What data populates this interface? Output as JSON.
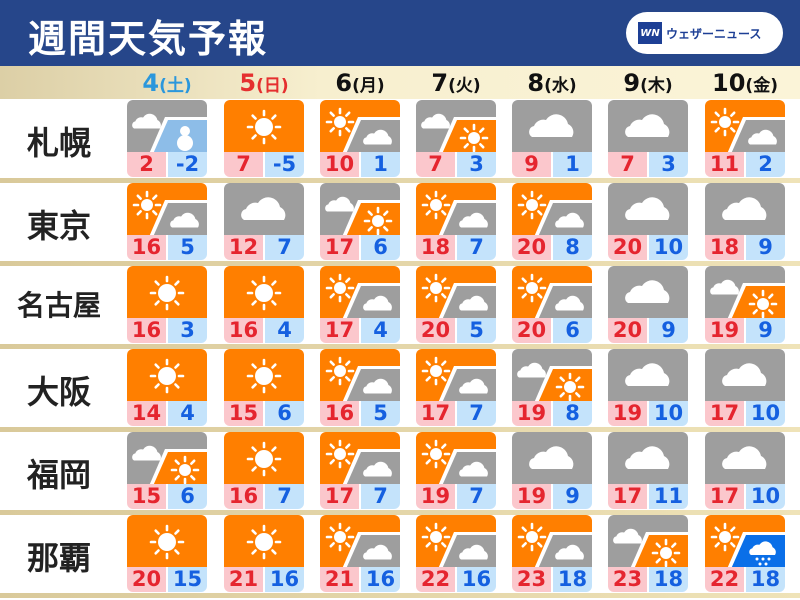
{
  "header": {
    "title": "週間天気予報",
    "logo_mark": "WN",
    "logo_text": "ウェザーニュース"
  },
  "colors": {
    "sunny": "#ff7f00",
    "cloudy": "#9e9e9e",
    "snow": "#8dbde8",
    "rain": "#0a6fe8",
    "saturday": "#2b97dc",
    "sunday": "#e52f2f"
  },
  "dates": [
    {
      "day": "4",
      "dow": "(土)",
      "color": "#2b97dc"
    },
    {
      "day": "5",
      "dow": "(日)",
      "color": "#e52f2f"
    },
    {
      "day": "6",
      "dow": "(月)",
      "color": "#111111"
    },
    {
      "day": "7",
      "dow": "(火)",
      "color": "#111111"
    },
    {
      "day": "8",
      "dow": "(水)",
      "color": "#111111"
    },
    {
      "day": "9",
      "dow": "(木)",
      "color": "#111111"
    },
    {
      "day": "10",
      "dow": "(金)",
      "color": "#111111"
    }
  ],
  "cities": [
    {
      "name": "札幌",
      "days": [
        {
          "main": "cloudy",
          "sub": "snow",
          "hi": "2",
          "lo": "-2"
        },
        {
          "main": "sunny",
          "sub": null,
          "hi": "7",
          "lo": "-5"
        },
        {
          "main": "sunny",
          "sub": "cloudy",
          "hi": "10",
          "lo": "1"
        },
        {
          "main": "cloudy",
          "sub": "sunny",
          "hi": "7",
          "lo": "3"
        },
        {
          "main": "cloudy",
          "sub": null,
          "hi": "9",
          "lo": "1"
        },
        {
          "main": "cloudy",
          "sub": null,
          "hi": "7",
          "lo": "3"
        },
        {
          "main": "sunny",
          "sub": "cloudy",
          "hi": "11",
          "lo": "2"
        }
      ]
    },
    {
      "name": "東京",
      "days": [
        {
          "main": "sunny",
          "sub": "cloudy",
          "hi": "16",
          "lo": "5"
        },
        {
          "main": "cloudy",
          "sub": null,
          "hi": "12",
          "lo": "7"
        },
        {
          "main": "cloudy",
          "sub": "sunny",
          "hi": "17",
          "lo": "6"
        },
        {
          "main": "sunny",
          "sub": "cloudy",
          "hi": "18",
          "lo": "7"
        },
        {
          "main": "sunny",
          "sub": "cloudy",
          "hi": "20",
          "lo": "8"
        },
        {
          "main": "cloudy",
          "sub": null,
          "hi": "20",
          "lo": "10"
        },
        {
          "main": "cloudy",
          "sub": null,
          "hi": "18",
          "lo": "9"
        }
      ]
    },
    {
      "name": "名古屋",
      "days": [
        {
          "main": "sunny",
          "sub": null,
          "hi": "16",
          "lo": "3"
        },
        {
          "main": "sunny",
          "sub": null,
          "hi": "16",
          "lo": "4"
        },
        {
          "main": "sunny",
          "sub": "cloudy",
          "hi": "17",
          "lo": "4"
        },
        {
          "main": "sunny",
          "sub": "cloudy",
          "hi": "20",
          "lo": "5"
        },
        {
          "main": "sunny",
          "sub": "cloudy",
          "hi": "20",
          "lo": "6"
        },
        {
          "main": "cloudy",
          "sub": null,
          "hi": "20",
          "lo": "9"
        },
        {
          "main": "cloudy",
          "sub": "sunny",
          "hi": "19",
          "lo": "9"
        }
      ]
    },
    {
      "name": "大阪",
      "days": [
        {
          "main": "sunny",
          "sub": null,
          "hi": "14",
          "lo": "4"
        },
        {
          "main": "sunny",
          "sub": null,
          "hi": "15",
          "lo": "6"
        },
        {
          "main": "sunny",
          "sub": "cloudy",
          "hi": "16",
          "lo": "5"
        },
        {
          "main": "sunny",
          "sub": "cloudy",
          "hi": "17",
          "lo": "7"
        },
        {
          "main": "cloudy",
          "sub": "sunny",
          "hi": "19",
          "lo": "8"
        },
        {
          "main": "cloudy",
          "sub": null,
          "hi": "19",
          "lo": "10"
        },
        {
          "main": "cloudy",
          "sub": null,
          "hi": "17",
          "lo": "10"
        }
      ]
    },
    {
      "name": "福岡",
      "days": [
        {
          "main": "cloudy",
          "sub": "sunny",
          "hi": "15",
          "lo": "6"
        },
        {
          "main": "sunny",
          "sub": null,
          "hi": "16",
          "lo": "7"
        },
        {
          "main": "sunny",
          "sub": "cloudy",
          "hi": "17",
          "lo": "7"
        },
        {
          "main": "sunny",
          "sub": "cloudy",
          "hi": "19",
          "lo": "7"
        },
        {
          "main": "cloudy",
          "sub": null,
          "hi": "19",
          "lo": "9"
        },
        {
          "main": "cloudy",
          "sub": null,
          "hi": "17",
          "lo": "11"
        },
        {
          "main": "cloudy",
          "sub": null,
          "hi": "17",
          "lo": "10"
        }
      ]
    },
    {
      "name": "那覇",
      "days": [
        {
          "main": "sunny",
          "sub": null,
          "hi": "20",
          "lo": "15"
        },
        {
          "main": "sunny",
          "sub": null,
          "hi": "21",
          "lo": "16"
        },
        {
          "main": "sunny",
          "sub": "cloudy",
          "hi": "21",
          "lo": "16"
        },
        {
          "main": "sunny",
          "sub": "cloudy",
          "hi": "22",
          "lo": "16"
        },
        {
          "main": "sunny",
          "sub": "cloudy",
          "hi": "23",
          "lo": "18"
        },
        {
          "main": "cloudy",
          "sub": "sunny",
          "hi": "23",
          "lo": "18"
        },
        {
          "main": "sunny",
          "sub": "rain",
          "hi": "22",
          "lo": "18"
        }
      ]
    }
  ]
}
